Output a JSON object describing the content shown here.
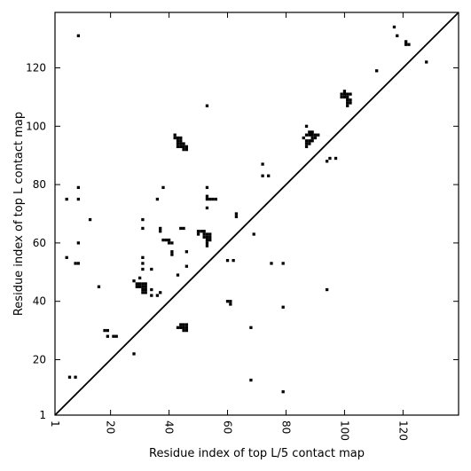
{
  "chart_data": {
    "type": "scatter",
    "title": "",
    "xlabel": "Residue index of top L/5 contact map",
    "ylabel": "Residue index of top L contact map",
    "xlim": [
      1,
      139
    ],
    "ylim": [
      1,
      139
    ],
    "xticks": [
      1,
      20,
      40,
      60,
      80,
      100,
      120
    ],
    "yticks": [
      1,
      20,
      40,
      60,
      80,
      100,
      120
    ],
    "xtick_labels": [
      "1",
      "20",
      "40",
      "60",
      "80",
      "100",
      "120"
    ],
    "ytick_labels": [
      "1",
      "20",
      "40",
      "60",
      "80",
      "100",
      "120"
    ],
    "xtick_rotation": 90,
    "diagonal": true,
    "marker_color": "#000000",
    "line_color": "#000000",
    "grid": false,
    "points": [
      [
        9,
        131
      ],
      [
        117,
        134
      ],
      [
        118,
        131
      ],
      [
        121,
        129
      ],
      [
        121,
        128
      ],
      [
        122,
        128
      ],
      [
        128,
        122
      ],
      [
        111,
        119
      ],
      [
        53,
        107
      ],
      [
        100,
        112
      ],
      [
        99,
        111
      ],
      [
        100,
        111
      ],
      [
        101,
        111
      ],
      [
        102,
        111
      ],
      [
        99,
        110
      ],
      [
        100,
        110
      ],
      [
        101,
        110
      ],
      [
        101,
        109
      ],
      [
        102,
        109
      ],
      [
        101,
        108
      ],
      [
        102,
        108
      ],
      [
        101,
        107
      ],
      [
        42,
        97
      ],
      [
        42,
        96
      ],
      [
        43,
        96
      ],
      [
        44,
        96
      ],
      [
        43,
        95
      ],
      [
        44,
        95
      ],
      [
        43,
        94
      ],
      [
        44,
        94
      ],
      [
        45,
        94
      ],
      [
        43,
        93
      ],
      [
        44,
        93
      ],
      [
        45,
        93
      ],
      [
        46,
        93
      ],
      [
        45,
        92
      ],
      [
        46,
        92
      ],
      [
        87,
        100
      ],
      [
        88,
        98
      ],
      [
        89,
        98
      ],
      [
        87,
        97
      ],
      [
        88,
        97
      ],
      [
        89,
        97
      ],
      [
        90,
        97
      ],
      [
        91,
        97
      ],
      [
        86,
        96
      ],
      [
        89,
        96
      ],
      [
        90,
        96
      ],
      [
        87,
        95
      ],
      [
        88,
        95
      ],
      [
        89,
        95
      ],
      [
        87,
        94
      ],
      [
        88,
        94
      ],
      [
        87,
        93
      ],
      [
        97,
        89
      ],
      [
        95,
        89
      ],
      [
        94,
        88
      ],
      [
        72,
        87
      ],
      [
        72,
        83
      ],
      [
        74,
        83
      ],
      [
        9,
        79
      ],
      [
        38,
        79
      ],
      [
        53,
        79
      ],
      [
        53,
        76
      ],
      [
        53,
        75
      ],
      [
        54,
        75
      ],
      [
        55,
        75
      ],
      [
        56,
        75
      ],
      [
        5,
        75
      ],
      [
        9,
        75
      ],
      [
        36,
        75
      ],
      [
        53,
        72
      ],
      [
        63,
        70
      ],
      [
        63,
        69
      ],
      [
        13,
        68
      ],
      [
        31,
        68
      ],
      [
        31,
        65
      ],
      [
        37,
        65
      ],
      [
        44,
        65
      ],
      [
        45,
        65
      ],
      [
        37,
        64
      ],
      [
        50,
        64
      ],
      [
        51,
        64
      ],
      [
        52,
        64
      ],
      [
        50,
        63
      ],
      [
        52,
        63
      ],
      [
        53,
        63
      ],
      [
        54,
        63
      ],
      [
        52,
        62
      ],
      [
        53,
        62
      ],
      [
        54,
        62
      ],
      [
        53,
        61
      ],
      [
        54,
        61
      ],
      [
        38,
        61
      ],
      [
        39,
        61
      ],
      [
        40,
        61
      ],
      [
        40,
        60
      ],
      [
        41,
        60
      ],
      [
        53,
        60
      ],
      [
        9,
        60
      ],
      [
        53,
        59
      ],
      [
        69,
        63
      ],
      [
        46,
        57
      ],
      [
        41,
        57
      ],
      [
        41,
        56
      ],
      [
        5,
        55
      ],
      [
        31,
        55
      ],
      [
        60,
        54
      ],
      [
        62,
        54
      ],
      [
        8,
        53
      ],
      [
        9,
        53
      ],
      [
        31,
        53
      ],
      [
        75,
        53
      ],
      [
        79,
        53
      ],
      [
        46,
        52
      ],
      [
        31,
        51
      ],
      [
        34,
        51
      ],
      [
        43,
        49
      ],
      [
        30,
        48
      ],
      [
        28,
        47
      ],
      [
        29,
        46
      ],
      [
        30,
        46
      ],
      [
        31,
        46
      ],
      [
        32,
        46
      ],
      [
        29,
        45
      ],
      [
        30,
        45
      ],
      [
        31,
        45
      ],
      [
        32,
        45
      ],
      [
        16,
        45
      ],
      [
        31,
        44
      ],
      [
        32,
        44
      ],
      [
        34,
        44
      ],
      [
        31,
        43
      ],
      [
        32,
        43
      ],
      [
        37,
        43
      ],
      [
        34,
        42
      ],
      [
        36,
        42
      ],
      [
        94,
        44
      ],
      [
        60,
        40
      ],
      [
        61,
        40
      ],
      [
        61,
        39
      ],
      [
        79,
        38
      ],
      [
        44,
        32
      ],
      [
        45,
        32
      ],
      [
        46,
        32
      ],
      [
        43,
        31
      ],
      [
        44,
        31
      ],
      [
        45,
        31
      ],
      [
        46,
        31
      ],
      [
        45,
        30
      ],
      [
        46,
        30
      ],
      [
        68,
        31
      ],
      [
        18,
        30
      ],
      [
        19,
        30
      ],
      [
        19,
        28
      ],
      [
        21,
        28
      ],
      [
        22,
        28
      ],
      [
        28,
        22
      ],
      [
        6,
        14
      ],
      [
        8,
        14
      ],
      [
        68,
        13
      ],
      [
        79,
        9
      ]
    ]
  }
}
